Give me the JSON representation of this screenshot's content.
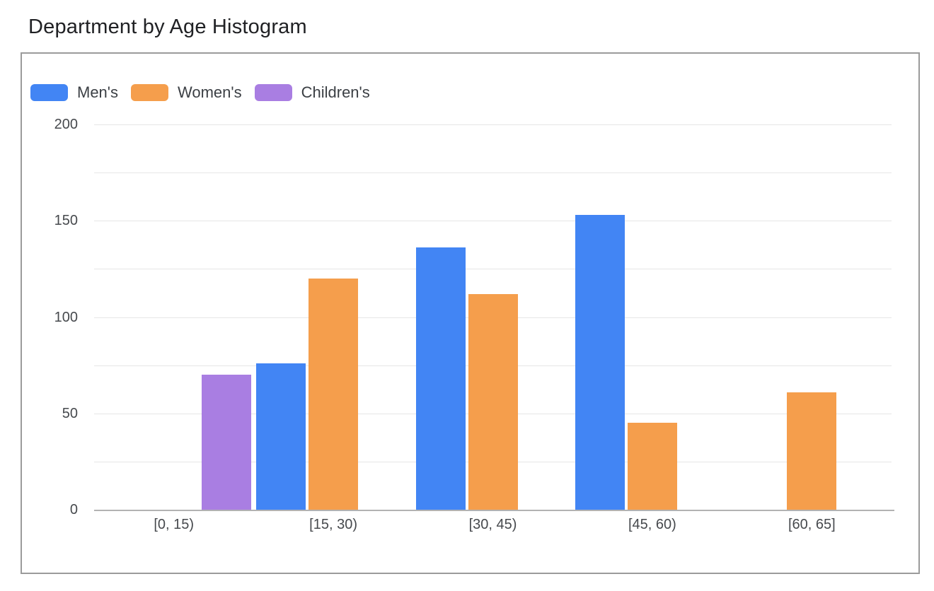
{
  "page": {
    "title": "Department by Age Histogram"
  },
  "chart_data": {
    "type": "bar",
    "title": "Department by Age Histogram",
    "categories": [
      "[0, 15)",
      "[15, 30)",
      "[30, 45)",
      "[45, 60)",
      "[60, 65]"
    ],
    "series": [
      {
        "name": "Men's",
        "color": "#4285F4",
        "values": [
          null,
          76,
          136,
          153,
          null
        ]
      },
      {
        "name": "Women's",
        "color": "#F59E4C",
        "values": [
          null,
          120,
          112,
          45,
          61
        ]
      },
      {
        "name": "Children's",
        "color": "#A97EE2",
        "values": [
          70,
          null,
          null,
          null,
          null
        ]
      }
    ],
    "xlabel": "",
    "ylabel": "",
    "ylim": [
      0,
      200
    ],
    "yticks": [
      0,
      50,
      100,
      150,
      200
    ],
    "grid_step": 25,
    "grid": true,
    "legend_position": "top-left"
  },
  "colors": {
    "gridline": "#e6e6e6",
    "axis_line": "#b2b2b2",
    "box_border": "#9b9b9b",
    "tick_text": "#46494d",
    "title_text": "#202124"
  }
}
